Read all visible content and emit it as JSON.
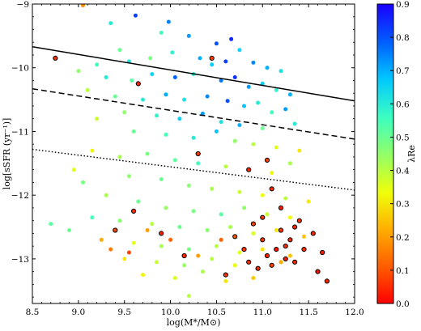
{
  "chart_data": {
    "type": "scatter",
    "xlabel": "log(M*/M⊙)",
    "ylabel": "log[sSFR (yr⁻¹)]",
    "xlim": [
      8.5,
      12.0
    ],
    "ylim": [
      -13.7,
      -9.0
    ],
    "xticks": [
      8.5,
      9.0,
      9.5,
      10.0,
      10.5,
      11.0,
      11.5,
      12.0
    ],
    "xtick_labels": [
      "8.5",
      "9.0",
      "9.5",
      "10.0",
      "10.5",
      "11.0",
      "11.5",
      "12.0"
    ],
    "yticks": [
      -13,
      -12,
      -11,
      -10,
      -9
    ],
    "ytick_labels": [
      "−13",
      "−12",
      "−11",
      "−10",
      "−9"
    ],
    "grid": false,
    "colorbar": {
      "label": "λRe",
      "range": [
        0.0,
        0.9
      ],
      "ticks": [
        0.0,
        0.1,
        0.2,
        0.3,
        0.4,
        0.5,
        0.6,
        0.7,
        0.8,
        0.9
      ],
      "tick_labels": [
        "0.0",
        "0.1",
        "0.2",
        "0.3",
        "0.4",
        "0.5",
        "0.6",
        "0.7",
        "0.8",
        "0.9"
      ],
      "colormap": "jet_r"
    },
    "lines": [
      {
        "style": "solid",
        "x": [
          8.5,
          12.0
        ],
        "y": [
          -9.67,
          -10.52
        ]
      },
      {
        "style": "dashed",
        "x": [
          8.5,
          12.0
        ],
        "y": [
          -10.33,
          -11.12
        ]
      },
      {
        "style": "dotted",
        "x": [
          8.5,
          12.0
        ],
        "y": [
          -11.28,
          -11.92
        ]
      }
    ],
    "series": [
      {
        "marker": "circle-filled",
        "points": [
          [
            9.05,
            -9.02,
            0.18
          ],
          [
            9.35,
            -9.3,
            0.6
          ],
          [
            9.62,
            -9.18,
            0.82
          ],
          [
            9.98,
            -9.28,
            0.75
          ],
          [
            9.9,
            -9.45,
            0.55
          ],
          [
            10.2,
            -9.5,
            0.72
          ],
          [
            10.5,
            -9.62,
            0.8
          ],
          [
            10.66,
            -9.55,
            0.85
          ],
          [
            10.75,
            -9.72,
            0.65
          ],
          [
            9.45,
            -9.72,
            0.5
          ],
          [
            9.55,
            -9.9,
            0.62
          ],
          [
            9.78,
            -9.85,
            0.48
          ],
          [
            10.02,
            -9.76,
            0.58
          ],
          [
            10.32,
            -9.85,
            0.7
          ],
          [
            10.45,
            -9.95,
            0.66
          ],
          [
            10.6,
            -9.9,
            0.82
          ],
          [
            10.9,
            -9.92,
            0.74
          ],
          [
            11.05,
            -10.0,
            0.7
          ],
          [
            11.2,
            -10.05,
            0.62
          ],
          [
            9.2,
            -9.95,
            0.55
          ],
          [
            9.0,
            -10.05,
            0.45
          ],
          [
            9.3,
            -10.15,
            0.6
          ],
          [
            9.58,
            -10.2,
            0.52
          ],
          [
            9.8,
            -10.1,
            0.65
          ],
          [
            10.05,
            -10.15,
            0.78
          ],
          [
            10.25,
            -10.1,
            0.6
          ],
          [
            10.55,
            -10.2,
            0.76
          ],
          [
            10.7,
            -10.15,
            0.84
          ],
          [
            10.85,
            -10.3,
            0.72
          ],
          [
            11.0,
            -10.25,
            0.66
          ],
          [
            11.15,
            -10.35,
            0.58
          ],
          [
            11.3,
            -10.42,
            0.7
          ],
          [
            9.1,
            -10.35,
            0.4
          ],
          [
            9.4,
            -10.45,
            0.5
          ],
          [
            9.7,
            -10.5,
            0.6
          ],
          [
            9.95,
            -10.42,
            0.7
          ],
          [
            10.15,
            -10.5,
            0.62
          ],
          [
            10.4,
            -10.45,
            0.74
          ],
          [
            10.62,
            -10.52,
            0.8
          ],
          [
            10.8,
            -10.6,
            0.68
          ],
          [
            10.95,
            -10.55,
            0.6
          ],
          [
            11.1,
            -10.7,
            0.55
          ],
          [
            11.25,
            -10.65,
            0.72
          ],
          [
            9.5,
            -10.7,
            0.45
          ],
          [
            9.85,
            -10.75,
            0.58
          ],
          [
            10.1,
            -10.8,
            0.66
          ],
          [
            10.35,
            -10.72,
            0.72
          ],
          [
            10.55,
            -10.85,
            0.62
          ],
          [
            10.75,
            -10.9,
            0.7
          ],
          [
            11.0,
            -10.95,
            0.5
          ],
          [
            11.35,
            -10.88,
            0.6
          ],
          [
            9.2,
            -10.8,
            0.38
          ],
          [
            9.6,
            -11.0,
            0.5
          ],
          [
            9.95,
            -11.05,
            0.55
          ],
          [
            10.25,
            -11.1,
            0.6
          ],
          [
            10.5,
            -11.0,
            0.68
          ],
          [
            10.7,
            -11.15,
            0.45
          ],
          [
            10.9,
            -11.2,
            0.4
          ],
          [
            11.15,
            -11.25,
            0.35
          ],
          [
            11.4,
            -11.3,
            0.3
          ],
          [
            9.15,
            -11.3,
            0.32
          ],
          [
            9.45,
            -11.4,
            0.42
          ],
          [
            9.75,
            -11.35,
            0.48
          ],
          [
            10.05,
            -11.45,
            0.52
          ],
          [
            10.3,
            -11.5,
            0.55
          ],
          [
            10.6,
            -11.55,
            0.4
          ],
          [
            10.85,
            -11.6,
            0.36
          ],
          [
            11.1,
            -11.65,
            0.32
          ],
          [
            11.3,
            -11.5,
            0.42
          ],
          [
            8.95,
            -11.6,
            0.35
          ],
          [
            9.55,
            -11.7,
            0.45
          ],
          [
            9.9,
            -11.75,
            0.5
          ],
          [
            10.2,
            -11.85,
            0.46
          ],
          [
            10.45,
            -11.9,
            0.42
          ],
          [
            10.75,
            -11.95,
            0.38
          ],
          [
            11.0,
            -12.0,
            0.34
          ],
          [
            11.25,
            -12.05,
            0.4
          ],
          [
            11.5,
            -12.1,
            0.3
          ],
          [
            9.3,
            -12.0,
            0.42
          ],
          [
            9.65,
            -12.1,
            0.5
          ],
          [
            9.95,
            -12.2,
            0.44
          ],
          [
            10.25,
            -12.25,
            0.48
          ],
          [
            10.55,
            -12.3,
            0.52
          ],
          [
            10.8,
            -12.2,
            0.45
          ],
          [
            11.05,
            -12.3,
            0.38
          ],
          [
            11.3,
            -12.35,
            0.33
          ],
          [
            9.45,
            -12.4,
            0.46
          ],
          [
            9.8,
            -12.45,
            0.4
          ],
          [
            10.1,
            -12.5,
            0.5
          ],
          [
            10.4,
            -12.55,
            0.46
          ],
          [
            10.65,
            -12.5,
            0.42
          ],
          [
            10.9,
            -12.6,
            0.36
          ],
          [
            11.15,
            -12.55,
            0.3
          ],
          [
            11.45,
            -12.65,
            0.25
          ],
          [
            9.25,
            -12.7,
            0.22
          ],
          [
            9.6,
            -12.75,
            0.35
          ],
          [
            9.9,
            -12.8,
            0.42
          ],
          [
            10.2,
            -12.85,
            0.48
          ],
          [
            10.5,
            -12.8,
            0.4
          ],
          [
            10.75,
            -12.9,
            0.35
          ],
          [
            11.0,
            -12.85,
            0.3
          ],
          [
            11.3,
            -12.95,
            0.25
          ],
          [
            9.5,
            -13.0,
            0.3
          ],
          [
            9.85,
            -13.05,
            0.38
          ],
          [
            10.15,
            -13.1,
            0.44
          ],
          [
            10.45,
            -13.0,
            0.4
          ],
          [
            10.7,
            -13.1,
            0.34
          ],
          [
            10.95,
            -13.15,
            0.28
          ],
          [
            11.2,
            -13.05,
            0.22
          ],
          [
            9.7,
            -13.25,
            0.32
          ],
          [
            10.05,
            -13.3,
            0.36
          ],
          [
            10.35,
            -13.2,
            0.42
          ],
          [
            10.6,
            -13.35,
            0.3
          ],
          [
            10.9,
            -13.3,
            0.26
          ],
          [
            10.2,
            -13.58,
            0.4
          ],
          [
            9.35,
            -12.85,
            0.15
          ],
          [
            9.75,
            -12.55,
            0.2
          ],
          [
            10.0,
            -12.7,
            0.12
          ],
          [
            9.55,
            -12.9,
            0.08
          ],
          [
            10.3,
            -12.95,
            0.2
          ],
          [
            10.55,
            -12.7,
            0.12
          ],
          [
            9.15,
            -12.35,
            0.55
          ],
          [
            8.9,
            -12.55,
            0.5
          ],
          [
            9.05,
            -11.8,
            0.48
          ],
          [
            8.7,
            -12.45,
            0.52
          ]
        ]
      },
      {
        "marker": "circle-black-edge",
        "points": [
          [
            8.75,
            -9.85,
            0.05
          ],
          [
            9.65,
            -10.25,
            0.04
          ],
          [
            10.45,
            -9.85,
            0.08
          ],
          [
            11.1,
            -11.9,
            0.05
          ],
          [
            11.2,
            -12.2,
            0.03
          ],
          [
            11.35,
            -12.5,
            0.04
          ],
          [
            11.0,
            -12.7,
            0.06
          ],
          [
            11.15,
            -12.85,
            0.02
          ],
          [
            11.3,
            -12.7,
            0.05
          ],
          [
            10.9,
            -12.45,
            0.07
          ],
          [
            11.05,
            -12.95,
            0.04
          ],
          [
            11.25,
            -13.0,
            0.03
          ],
          [
            11.45,
            -12.85,
            0.05
          ],
          [
            11.6,
            -13.2,
            0.02
          ],
          [
            11.7,
            -13.35,
            0.04
          ],
          [
            10.8,
            -12.85,
            0.06
          ],
          [
            10.95,
            -13.15,
            0.05
          ],
          [
            11.1,
            -13.1,
            0.08
          ],
          [
            11.4,
            -12.4,
            0.06
          ],
          [
            11.55,
            -12.6,
            0.04
          ],
          [
            10.7,
            -12.65,
            0.1
          ],
          [
            11.2,
            -12.55,
            0.07
          ],
          [
            10.85,
            -13.05,
            0.05
          ],
          [
            11.0,
            -12.35,
            0.06
          ],
          [
            9.6,
            -12.25,
            0.05
          ],
          [
            9.4,
            -12.55,
            0.08
          ],
          [
            10.3,
            -11.35,
            0.06
          ],
          [
            10.85,
            -11.6,
            0.05
          ],
          [
            11.05,
            -11.45,
            0.07
          ],
          [
            9.9,
            -12.6,
            0.04
          ],
          [
            10.15,
            -12.95,
            0.05
          ],
          [
            10.6,
            -13.25,
            0.06
          ],
          [
            11.35,
            -13.05,
            0.04
          ],
          [
            11.25,
            -12.8,
            0.05
          ],
          [
            11.65,
            -12.9,
            0.03
          ]
        ]
      }
    ]
  }
}
